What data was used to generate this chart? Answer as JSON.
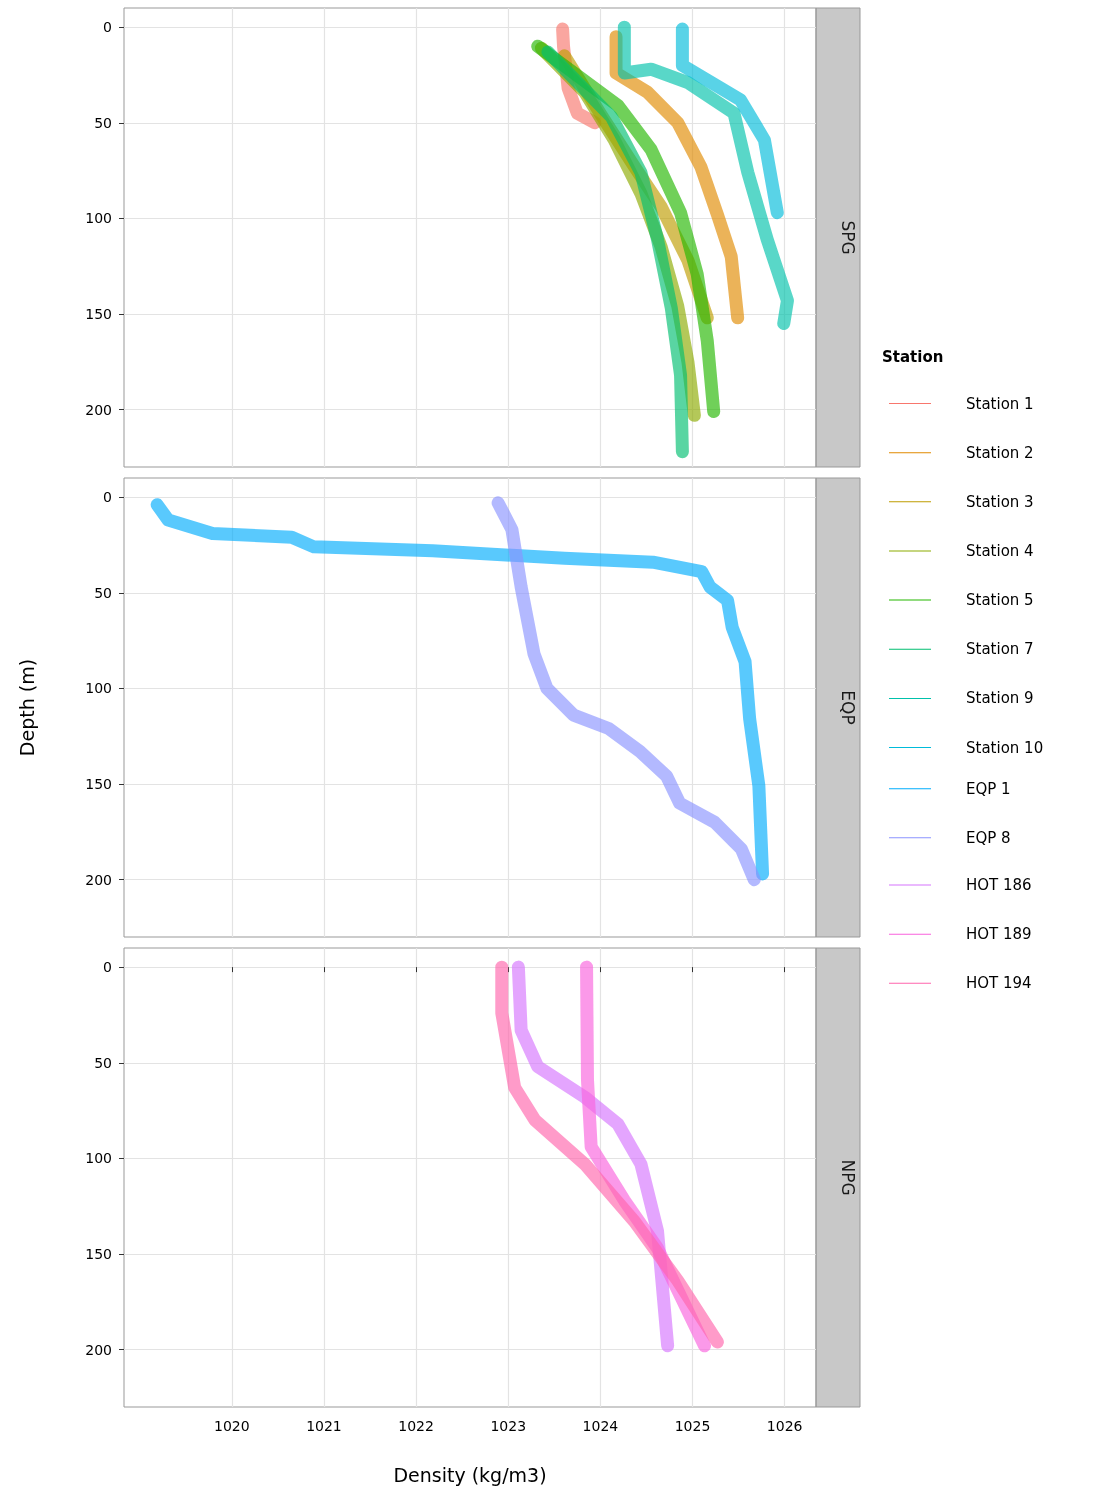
{
  "chart_data": [
    {
      "type": "line",
      "annotations": [
        "SPG"
      ],
      "legend_title": "Station",
      "legend": "right",
      "tick_labels": "y",
      "grid": true,
      "xlim": [
        1018.83,
        1026.34
      ],
      "xticks": [
        1020,
        1021,
        1022,
        1023,
        1024,
        1025,
        1026
      ],
      "ylim": [
        230,
        -10
      ],
      "yticks": [
        0,
        50,
        100,
        150,
        200
      ],
      "series": [
        {
          "name": "Station 1",
          "color": "#f8766d",
          "x": [
            1023.59,
            1023.6,
            1023.65,
            1023.75,
            1023.94
          ],
          "values": [
            1,
            10,
            32,
            45,
            50
          ]
        },
        {
          "name": "Station 2",
          "color": "#e18a00",
          "x": [
            1024.17,
            1024.17,
            1024.51,
            1024.84,
            1025.09,
            1025.27,
            1025.42,
            1025.49
          ],
          "values": [
            5,
            24,
            34,
            50,
            73,
            98,
            120,
            152
          ]
        },
        {
          "name": "Station 3",
          "color": "#be9c00",
          "x": [
            1023.61,
            1024.01,
            1024.37,
            1024.66,
            1024.95,
            1025.16
          ],
          "values": [
            15,
            46,
            73,
            94,
            122,
            152
          ]
        },
        {
          "name": "Station 4",
          "color": "#8cab00",
          "x": [
            1023.36,
            1023.83,
            1024.15,
            1024.44,
            1024.66,
            1024.84,
            1024.95,
            1025.02
          ],
          "values": [
            11,
            34,
            59,
            87,
            115,
            146,
            175,
            203
          ]
        },
        {
          "name": "Station 5",
          "color": "#24b700",
          "x": [
            1023.32,
            1024.19,
            1024.55,
            1024.87,
            1025.05,
            1025.16,
            1025.23
          ],
          "values": [
            10,
            41,
            64,
            97,
            129,
            164,
            201
          ]
        },
        {
          "name": "Station 7",
          "color": "#00be70",
          "x": [
            1023.43,
            1024.12,
            1024.44,
            1024.62,
            1024.77,
            1024.87,
            1024.89
          ],
          "values": [
            13,
            47,
            76,
            111,
            147,
            182,
            222
          ]
        },
        {
          "name": "Station 9",
          "color": "#00c1ab",
          "x": [
            1024.26,
            1024.26,
            1024.55,
            1024.95,
            1025.45,
            1025.6,
            1025.81,
            1026.03,
            1025.99
          ],
          "values": [
            0,
            24,
            22,
            29,
            45,
            76,
            111,
            143,
            155
          ]
        },
        {
          "name": "Station 10",
          "color": "#00bbda",
          "x": [
            1024.89,
            1024.89,
            1025.52,
            1025.78,
            1025.92
          ],
          "values": [
            1,
            20,
            38,
            59,
            97
          ]
        }
      ]
    },
    {
      "type": "line",
      "annotations": [
        "EQP"
      ],
      "ylabel": "Depth (m)",
      "legend": "right",
      "tick_labels": "y",
      "grid": true,
      "xlim": [
        1018.83,
        1026.34
      ],
      "xticks": [
        1020,
        1021,
        1022,
        1023,
        1024,
        1025,
        1026
      ],
      "ylim": [
        230,
        -10
      ],
      "yticks": [
        0,
        50,
        100,
        150,
        200
      ],
      "series": [
        {
          "name": "EQP 1",
          "color": "#00acfc",
          "x": [
            1019.19,
            1019.31,
            1019.79,
            1020.65,
            1020.89,
            1022.18,
            1023.61,
            1024.57,
            1025.1,
            1025.19,
            1025.38,
            1025.43,
            1025.57,
            1025.62,
            1025.72,
            1025.76
          ],
          "values": [
            4,
            12,
            19,
            21,
            26,
            28,
            32,
            34,
            39,
            47,
            54,
            68,
            86,
            116,
            151,
            197
          ]
        },
        {
          "name": "EQP 8",
          "color": "#8b93ff",
          "x": [
            1022.89,
            1023.04,
            1023.14,
            1023.28,
            1023.42,
            1023.71,
            1024.09,
            1024.43,
            1024.72,
            1024.86,
            1025.24,
            1025.53,
            1025.67
          ],
          "values": [
            3,
            17,
            47,
            82,
            100,
            114,
            121,
            133,
            146,
            160,
            170,
            184,
            200
          ]
        }
      ]
    },
    {
      "type": "line",
      "annotations": [
        "NPG"
      ],
      "xlabel": "Density (kg/m3)",
      "legend": "right",
      "grid": true,
      "xlim": [
        1018.83,
        1026.34
      ],
      "xticks": [
        1020,
        1021,
        1022,
        1023,
        1024,
        1025,
        1026
      ],
      "ylim": [
        230,
        -10
      ],
      "yticks": [
        0,
        50,
        100,
        150,
        200
      ],
      "series": [
        {
          "name": "HOT 186",
          "color": "#d575fe",
          "x": [
            1023.11,
            1023.14,
            1023.32,
            1023.83,
            1024.19,
            1024.44,
            1024.62,
            1024.73
          ],
          "values": [
            0,
            33,
            52,
            68,
            82,
            103,
            138,
            198
          ]
        },
        {
          "name": "HOT 189",
          "color": "#f962dd",
          "x": [
            1023.85,
            1023.86,
            1023.9,
            1024.26,
            1024.62,
            1025.13
          ],
          "values": [
            0,
            59,
            94,
            122,
            147,
            198
          ]
        },
        {
          "name": "HOT 194",
          "color": "#ff65ac",
          "x": [
            1022.93,
            1022.93,
            1023.07,
            1023.29,
            1023.83,
            1024.37,
            1024.84,
            1025.27
          ],
          "values": [
            0,
            24,
            63,
            80,
            103,
            133,
            164,
            196
          ]
        }
      ]
    }
  ]
}
